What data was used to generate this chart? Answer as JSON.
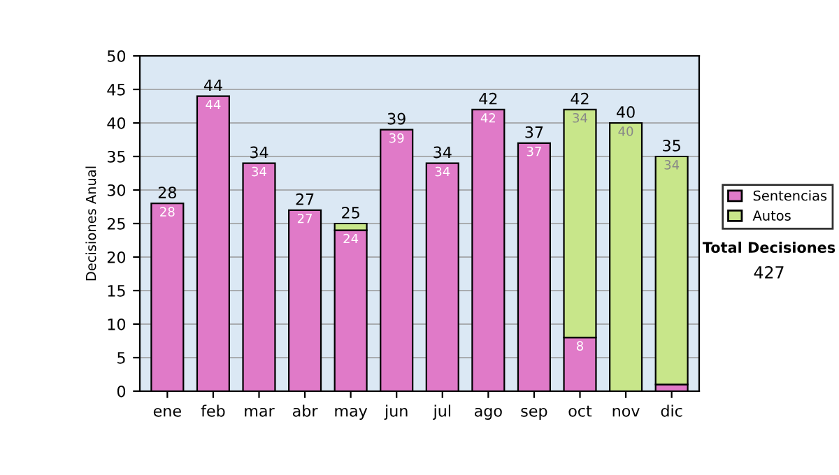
{
  "chart_data": {
    "type": "bar",
    "stacked": true,
    "ylabel": "Decisiones Anual",
    "categories": [
      "ene",
      "feb",
      "mar",
      "abr",
      "may",
      "jun",
      "jul",
      "ago",
      "sep",
      "oct",
      "nov",
      "dic"
    ],
    "series": [
      {
        "name": "Sentencias",
        "color": "#e07ac8",
        "values": [
          28,
          44,
          34,
          27,
          24,
          39,
          34,
          42,
          37,
          8,
          null,
          1
        ],
        "value_labels": [
          "28",
          "44",
          "34",
          "27",
          "24",
          "39",
          "34",
          "42",
          "37",
          "8",
          null,
          null
        ]
      },
      {
        "name": "Autos",
        "color": "#c8e68a",
        "values": [
          null,
          null,
          null,
          null,
          1,
          null,
          null,
          null,
          null,
          34,
          40,
          34
        ],
        "value_labels": [
          null,
          null,
          null,
          null,
          null,
          null,
          null,
          null,
          null,
          "34",
          "40",
          "34"
        ]
      }
    ],
    "totals": [
      "28",
      "44",
      "34",
      "27",
      "25",
      "39",
      "34",
      "42",
      "37",
      "42",
      "40",
      "35"
    ],
    "ylim": [
      0,
      50
    ],
    "yticks": [
      0,
      5,
      10,
      15,
      20,
      25,
      30,
      35,
      40,
      45,
      50
    ],
    "grid": "y",
    "legend": "right",
    "annotations": [
      "Total Decisiones",
      "427"
    ]
  }
}
